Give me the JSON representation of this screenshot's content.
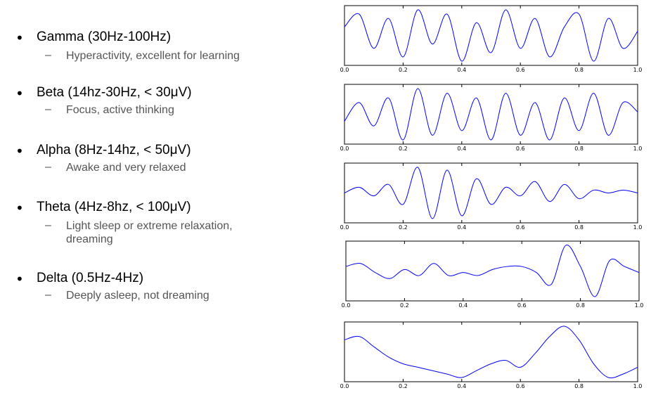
{
  "bands": [
    {
      "name": "Gamma (30Hz-100Hz)",
      "desc": "Hyperactivity, excellent for learning"
    },
    {
      "name": "Beta (14hz-30Hz, < 30μV)",
      "desc": "Focus, active thinking"
    },
    {
      "name": "Alpha (8Hz-14hz, < 50μV)",
      "desc": "Awake and very relaxed"
    },
    {
      "name": "Theta (4Hz-8hz, < 100μV)",
      "desc": "Light sleep or extreme relaxation, dreaming"
    },
    {
      "name": "Delta (0.5Hz-4Hz)",
      "desc": "Deeply asleep, not dreaming"
    }
  ],
  "bullet_glyph": "•",
  "dash_glyph": "–",
  "chart_data": [
    {
      "type": "line",
      "xlim": [
        0,
        1.0
      ],
      "xticks": [
        "0.0",
        "0.2",
        "0.4",
        "0.6",
        "0.8",
        "1.0"
      ],
      "grid": false,
      "color": "#0000ff",
      "x": [
        0,
        0.05,
        0.1,
        0.15,
        0.2,
        0.25,
        0.3,
        0.35,
        0.4,
        0.45,
        0.5,
        0.55,
        0.6,
        0.65,
        0.7,
        0.75,
        0.8,
        0.85,
        0.9,
        0.95,
        1.0
      ],
      "y": [
        0.2,
        0.5,
        -0.3,
        0.4,
        -0.5,
        0.6,
        -0.2,
        0.5,
        -0.6,
        0.3,
        -0.4,
        0.6,
        -0.3,
        0.4,
        -0.5,
        0.2,
        0.5,
        -0.6,
        0.4,
        -0.3,
        0.1
      ]
    },
    {
      "type": "line",
      "xlim": [
        0,
        1.0
      ],
      "xticks": [
        "0.0",
        "0.2",
        "0.4",
        "0.6",
        "0.8",
        "1.0"
      ],
      "grid": false,
      "color": "#0000ff",
      "x": [
        0,
        0.05,
        0.1,
        0.15,
        0.2,
        0.25,
        0.3,
        0.35,
        0.4,
        0.45,
        0.5,
        0.55,
        0.6,
        0.65,
        0.7,
        0.75,
        0.8,
        0.85,
        0.9,
        0.95,
        1.0
      ],
      "y": [
        -0.1,
        0.3,
        -0.2,
        0.4,
        -0.5,
        0.6,
        -0.4,
        0.5,
        -0.3,
        0.4,
        -0.5,
        0.5,
        -0.4,
        0.3,
        -0.5,
        0.4,
        -0.3,
        0.5,
        -0.4,
        0.3,
        0.1
      ]
    },
    {
      "type": "line",
      "xlim": [
        0,
        1.0
      ],
      "xticks": [
        "0.0",
        "0.2",
        "0.4",
        "0.6",
        "0.8",
        "1.0"
      ],
      "grid": false,
      "color": "#0000ff",
      "x": [
        0,
        0.05,
        0.1,
        0.15,
        0.2,
        0.25,
        0.3,
        0.35,
        0.4,
        0.45,
        0.5,
        0.55,
        0.6,
        0.65,
        0.7,
        0.75,
        0.8,
        0.85,
        0.9,
        0.95,
        1.0
      ],
      "y": [
        0.0,
        0.2,
        -0.1,
        0.3,
        -0.4,
        0.9,
        -0.9,
        0.8,
        -0.8,
        0.5,
        -0.4,
        0.2,
        -0.1,
        0.4,
        -0.3,
        0.3,
        -0.2,
        0.1,
        0.0,
        0.1,
        0.0
      ]
    },
    {
      "type": "line",
      "xlim": [
        0,
        1.0
      ],
      "xticks": [
        "0.0",
        "0.2",
        "0.4",
        "0.6",
        "0.8",
        "1.0"
      ],
      "grid": false,
      "color": "#0000ff",
      "x": [
        0,
        0.05,
        0.1,
        0.15,
        0.2,
        0.25,
        0.3,
        0.35,
        0.4,
        0.45,
        0.5,
        0.55,
        0.6,
        0.65,
        0.7,
        0.75,
        0.8,
        0.85,
        0.9,
        0.95,
        1.0
      ],
      "y": [
        0.2,
        0.3,
        0.0,
        -0.2,
        0.1,
        -0.1,
        0.3,
        -0.1,
        0.0,
        -0.1,
        0.1,
        0.2,
        0.2,
        0.0,
        -0.4,
        0.9,
        0.2,
        -0.8,
        0.4,
        0.2,
        0.0
      ]
    },
    {
      "type": "line",
      "xlim": [
        0,
        1.0
      ],
      "xticks": [
        "0.0",
        "0.2",
        "0.4",
        "0.6",
        "0.8",
        "1.0"
      ],
      "grid": false,
      "color": "#0000ff",
      "x": [
        0,
        0.05,
        0.1,
        0.15,
        0.2,
        0.25,
        0.3,
        0.35,
        0.4,
        0.45,
        0.5,
        0.55,
        0.6,
        0.65,
        0.7,
        0.75,
        0.8,
        0.85,
        0.9,
        0.95,
        1.0
      ],
      "y": [
        0.6,
        0.7,
        0.4,
        0.1,
        -0.1,
        -0.2,
        -0.3,
        -0.4,
        -0.5,
        -0.3,
        -0.1,
        0.0,
        -0.2,
        0.2,
        0.7,
        1.0,
        0.6,
        -0.1,
        -0.5,
        -0.4,
        -0.2
      ]
    }
  ]
}
